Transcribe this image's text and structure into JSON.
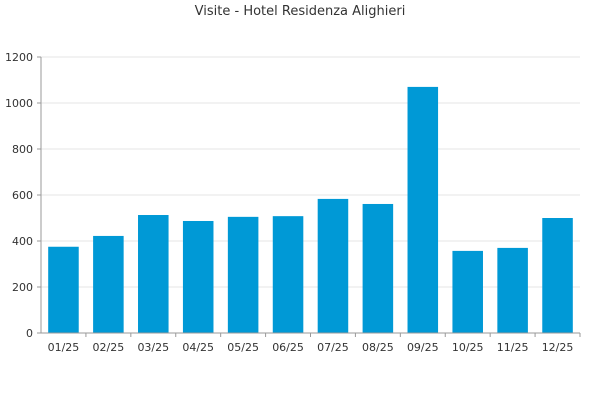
{
  "chart_data": {
    "type": "bar",
    "title": "Visite - Hotel Residenza Alighieri",
    "xlabel": "",
    "ylabel": "",
    "categories": [
      "01/25",
      "02/25",
      "03/25",
      "04/25",
      "05/25",
      "06/25",
      "07/25",
      "08/25",
      "09/25",
      "10/25",
      "11/25",
      "12/25"
    ],
    "values": [
      375,
      422,
      513,
      487,
      505,
      508,
      583,
      561,
      1070,
      357,
      370,
      500
    ],
    "ylim": [
      0,
      1200
    ],
    "yticks": [
      0,
      200,
      400,
      600,
      800,
      1000,
      1200
    ],
    "grid": true,
    "legend": "none",
    "bar_color": "#0099d6",
    "grid_color": "#e6e6e6",
    "axis_color": "#999999"
  }
}
